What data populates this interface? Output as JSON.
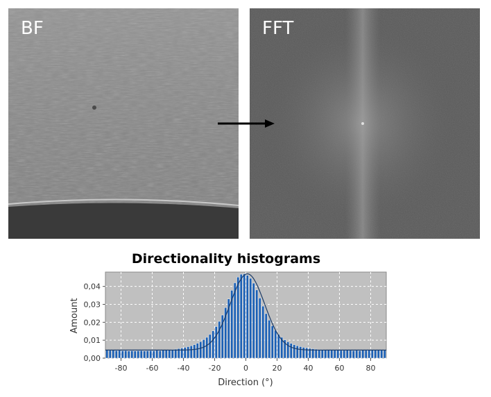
{
  "panels": {
    "bf": {
      "label": "BF"
    },
    "fft": {
      "label": "FFT"
    }
  },
  "colors": {
    "bar": "#1a5fb4",
    "fit_line": "#1a3a66",
    "plot_bg": "#c0c0c0",
    "grid": "#ffffff"
  },
  "chart_data": {
    "type": "bar",
    "title": "Directionality histograms",
    "xlabel": "Direction (°)",
    "ylabel": "Amount",
    "xlim": [
      -90,
      90
    ],
    "ylim": [
      0,
      0.048
    ],
    "xticks": [
      -80,
      -60,
      -40,
      -20,
      0,
      20,
      40,
      60,
      80
    ],
    "yticks": [
      "0,00",
      "0,01",
      "0,02",
      "0,03",
      "0,04"
    ],
    "ytick_values": [
      0,
      0.01,
      0.02,
      0.03,
      0.04
    ],
    "grid": true,
    "bin_width": 2,
    "x": [
      -89,
      -87,
      -85,
      -83,
      -81,
      -79,
      -77,
      -75,
      -73,
      -71,
      -69,
      -67,
      -65,
      -63,
      -61,
      -59,
      -57,
      -55,
      -53,
      -51,
      -49,
      -47,
      -45,
      -43,
      -41,
      -39,
      -37,
      -35,
      -33,
      -31,
      -29,
      -27,
      -25,
      -23,
      -21,
      -19,
      -17,
      -15,
      -13,
      -11,
      -9,
      -7,
      -5,
      -3,
      -1,
      1,
      3,
      5,
      7,
      9,
      11,
      13,
      15,
      17,
      19,
      21,
      23,
      25,
      27,
      29,
      31,
      33,
      35,
      37,
      39,
      41,
      43,
      45,
      47,
      49,
      51,
      53,
      55,
      57,
      59,
      61,
      63,
      65,
      67,
      69,
      71,
      73,
      75,
      77,
      79,
      81,
      83,
      85,
      87,
      89
    ],
    "values": [
      0.0045,
      0.0043,
      0.0044,
      0.0042,
      0.0043,
      0.0041,
      0.0042,
      0.004,
      0.0041,
      0.004,
      0.0041,
      0.0042,
      0.004,
      0.0041,
      0.0042,
      0.0041,
      0.0043,
      0.0042,
      0.0044,
      0.0045,
      0.0046,
      0.0048,
      0.005,
      0.0053,
      0.0056,
      0.006,
      0.0064,
      0.0069,
      0.0075,
      0.0083,
      0.0092,
      0.0103,
      0.0116,
      0.0132,
      0.0152,
      0.0176,
      0.0205,
      0.024,
      0.0282,
      0.033,
      0.0378,
      0.042,
      0.0452,
      0.0468,
      0.047,
      0.0462,
      0.0445,
      0.0418,
      0.038,
      0.0335,
      0.029,
      0.0248,
      0.0212,
      0.018,
      0.0155,
      0.0133,
      0.0116,
      0.0102,
      0.0091,
      0.0082,
      0.0075,
      0.0069,
      0.0064,
      0.006,
      0.0057,
      0.0054,
      0.0052,
      0.005,
      0.0048,
      0.0047,
      0.0046,
      0.0045,
      0.0045,
      0.0044,
      0.0044,
      0.0043,
      0.0043,
      0.0044,
      0.0043,
      0.0042,
      0.0043,
      0.0042,
      0.0044,
      0.0043,
      0.0044,
      0.0045,
      0.0044,
      0.0045,
      0.0046,
      0.0047
    ],
    "fit": {
      "center": 1,
      "amplitude": 0.0425,
      "sigma": 11,
      "baseline": 0.0045
    }
  }
}
